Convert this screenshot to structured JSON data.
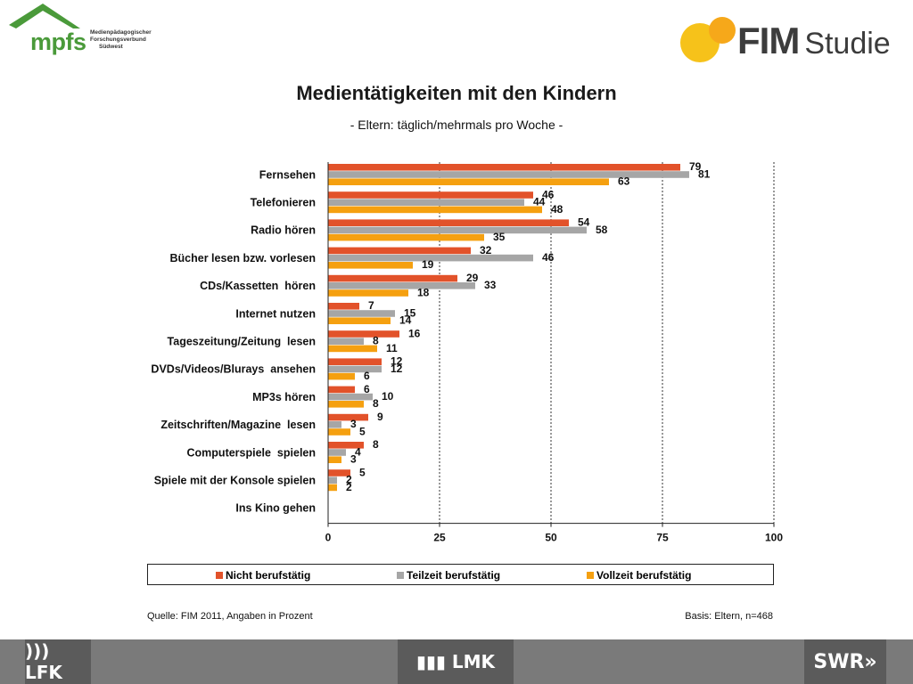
{
  "header": {
    "mpfs_logo_text": "mpfs",
    "mpfs_lines": [
      "Medienpädagogischer",
      "Forschungsverbund",
      "Südwest"
    ],
    "fim_logo_text": "FIM",
    "fim_logo_sub": "Studie"
  },
  "chart_data": {
    "type": "bar",
    "orientation": "horizontal",
    "title": "Medientätigkeiten mit den Kindern",
    "subtitle": "- Eltern: täglich/mehrmals pro Woche -",
    "categories": [
      "Fernsehen",
      "Telefonieren",
      "Radio hören",
      "Bücher lesen bzw. vorlesen",
      "CDs/Kassetten  hören",
      "Internet nutzen",
      "Tageszeitung/Zeitung  lesen",
      "DVDs/Videos/Blurays  ansehen",
      "MP3s hören",
      "Zeitschriften/Magazine  lesen",
      "Computerspiele  spielen",
      "Spiele mit der Konsole spielen",
      "Ins Kino gehen"
    ],
    "series": [
      {
        "name": "Nicht berufstätig",
        "color": "#e2522a",
        "values": [
          79,
          46,
          54,
          32,
          29,
          7,
          16,
          12,
          6,
          9,
          8,
          5,
          null
        ]
      },
      {
        "name": "Teilzeit berufstätig",
        "color": "#a6a6a6",
        "values": [
          81,
          44,
          58,
          46,
          33,
          15,
          8,
          12,
          10,
          3,
          4,
          2,
          null
        ]
      },
      {
        "name": "Vollzeit berufstätig",
        "color": "#f5a010",
        "values": [
          63,
          48,
          35,
          19,
          18,
          14,
          11,
          6,
          8,
          5,
          3,
          2,
          null
        ]
      }
    ],
    "xlim": [
      0,
      100
    ],
    "xticks": [
      0,
      25,
      50,
      75,
      100
    ],
    "grid": "vertical dashed",
    "legend_position": "bottom"
  },
  "footer": {
    "source": "Quelle: FIM 2011, Angaben in Prozent",
    "basis": "Basis: Eltern, n=468",
    "logos": [
      "LFK",
      "LMK",
      "SWR"
    ]
  }
}
